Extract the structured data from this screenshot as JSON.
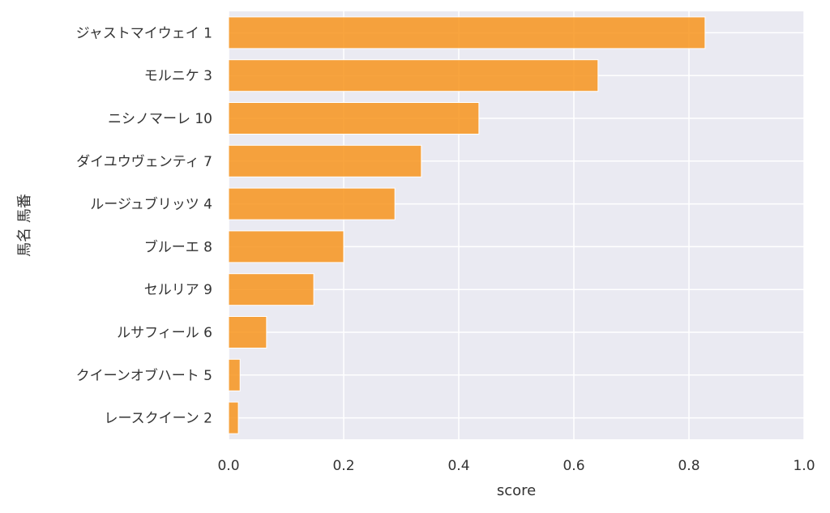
{
  "chart_data": {
    "type": "bar",
    "orientation": "horizontal",
    "title": "",
    "xlabel": "score",
    "ylabel": "馬名 馬番",
    "xlim": [
      0,
      1.0
    ],
    "xticks": [
      "0.0",
      "0.2",
      "0.4",
      "0.6",
      "0.8",
      "1.0"
    ],
    "grid": true,
    "categories": [
      "ジャストマイウェイ 1",
      "モルニケ 3",
      "ニシノマーレ 10",
      "ダイユウヴェンティ 7",
      "ルージュブリッツ 4",
      "ブルーエ 8",
      "セルリア 9",
      "ルサフィール 6",
      "クイーンオブハート 5",
      "レースクイーン 2"
    ],
    "values": [
      0.828,
      0.642,
      0.435,
      0.335,
      0.289,
      0.2,
      0.148,
      0.066,
      0.02,
      0.017
    ],
    "bar_color": "#f7941d",
    "background_color": "#eaeaf2"
  }
}
